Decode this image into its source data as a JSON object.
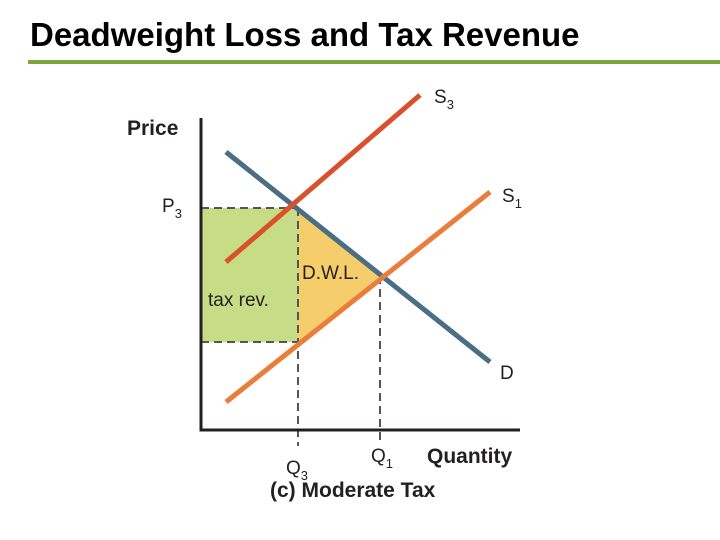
{
  "header": {
    "title": "Deadweight Loss and Tax Revenue"
  },
  "diagram": {
    "y_axis_label": "Price",
    "x_axis_label": "Quantity",
    "curves": [
      {
        "name": "S",
        "subscript": "3"
      },
      {
        "name": "S",
        "subscript": "1"
      },
      {
        "name": "D"
      }
    ],
    "price_label": {
      "name": "P",
      "subscript": "3"
    },
    "quantity_labels": [
      {
        "name": "Q",
        "subscript": "3"
      },
      {
        "name": "Q",
        "subscript": "1"
      }
    ],
    "regions": [
      "D.W.L.",
      "tax rev."
    ],
    "caption": "(c) Moderate Tax"
  }
}
